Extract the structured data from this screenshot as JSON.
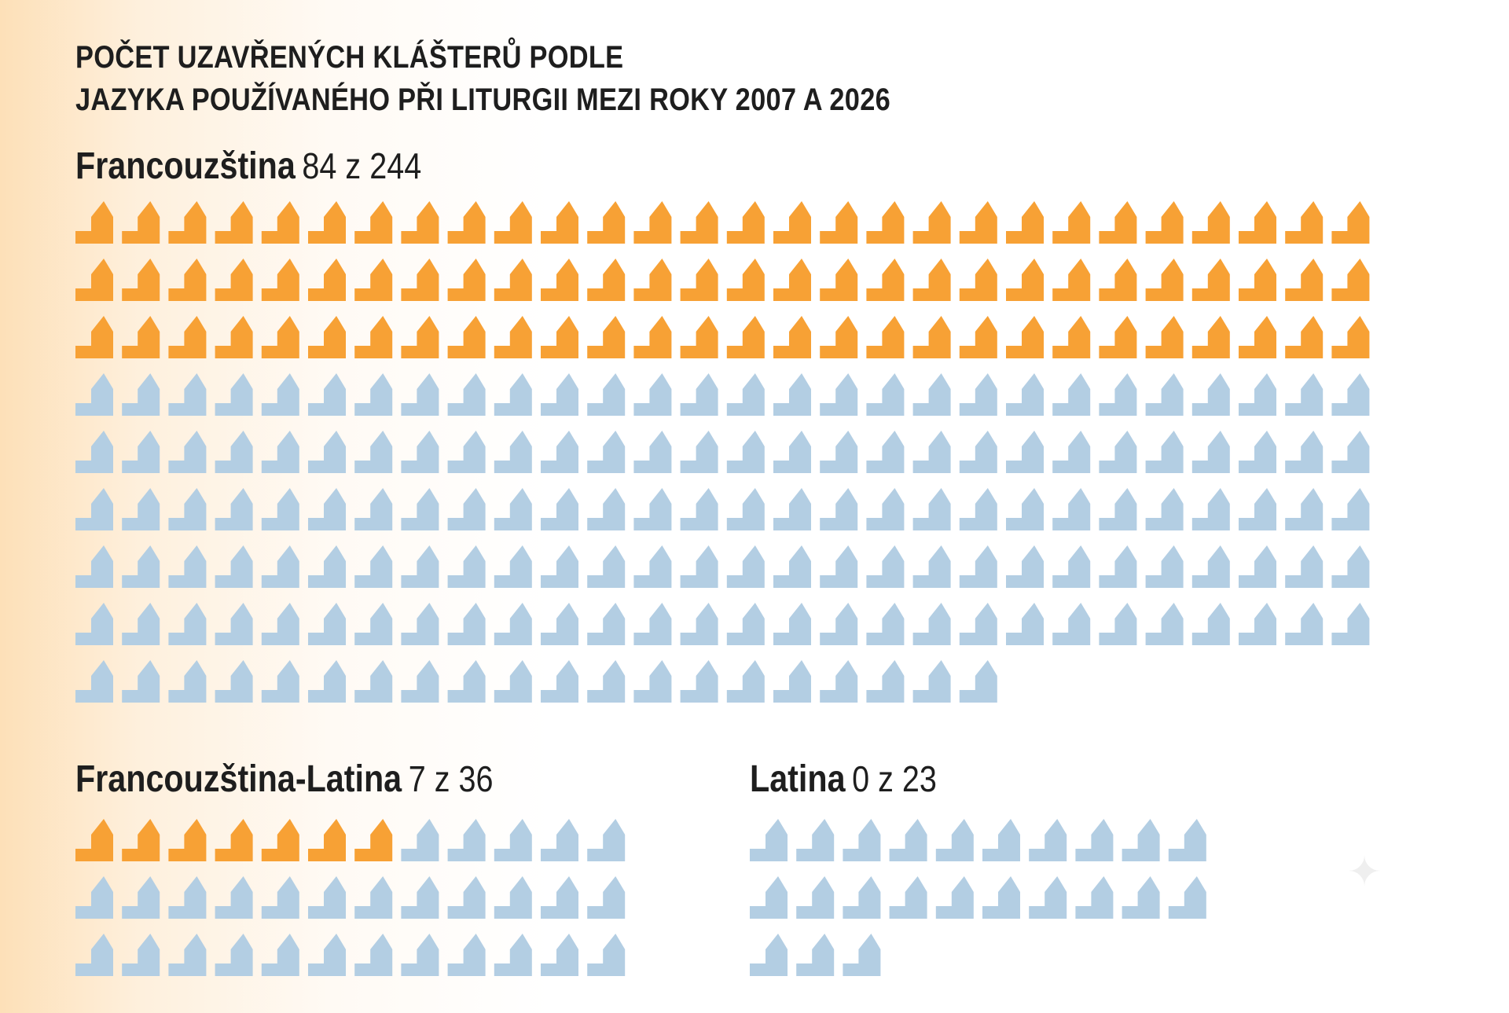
{
  "title": {
    "line1": "POČET UZAVŘENÝCH KLÁŠTERŮ PODLE",
    "line2": "JAZYKA POUŽÍVANÉHO PŘI LITURGII MEZI ROKY 2007 A 2026"
  },
  "colors": {
    "closed": "#f7a135",
    "open": "#b3cee3",
    "text": "#1e1e1e"
  },
  "icon": "monastery-icon",
  "chart_data": [
    {
      "type": "pictogram",
      "label": "Francouzština",
      "count_text": "84 z 244",
      "closed": 84,
      "total": 244,
      "per_row": 28
    },
    {
      "type": "pictogram",
      "label": "Francouzština-Latina",
      "count_text": "7 z 36",
      "closed": 7,
      "total": 36,
      "per_row": 12
    },
    {
      "type": "pictogram",
      "label": "Latina",
      "count_text": "0 z 23",
      "closed": 0,
      "total": 23,
      "per_row": 10
    }
  ]
}
